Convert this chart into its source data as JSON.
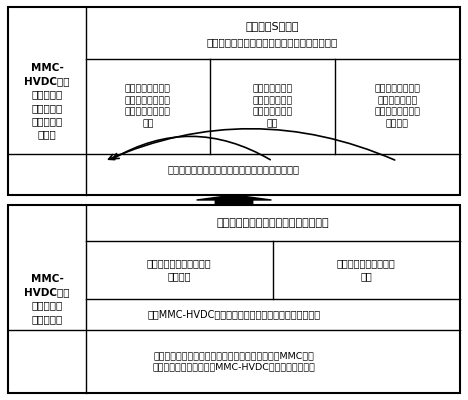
{
  "fig_width": 4.68,
  "fig_height": 4.0,
  "dpi": 100,
  "bg_color": "#ffffff",
  "top_section": {
    "left_label": "MMC-\nHVDC系统\n交流侧不同\n故障特征及\n能量流动机\n理分析",
    "top_row_line1": "基于广义S变换的",
    "top_row_line2": "特征谐波和非特征谐波暂态能量的故障特征分析",
    "cell1_text": "外部参数变化规律\n（直流电压电流、\n交流三相电压电流\n等）",
    "cell2_text": "内部参数变化规\n律（桥臂电流、\n子模块电压环流\n等）",
    "cell3_text": "故障系统及换流器\n暂态能量分布规\n律，构建系统能量\n流动回路",
    "bottom_text": "探寻能量流动机理与系统电气参数变化的耦合特性"
  },
  "bottom_section": {
    "left_label": "MMC-\nHVDC系统\n故障功率运\n行区间优化",
    "top_row_text": "基于系统能量流动规律的功率区间优化",
    "cell1_text": "考虑不同故障类型、不同\n跌落程度",
    "cell2_text": "综合考虑系统的多因素\n约束",
    "row3_text": "构建MMC-HVDC系统最大有功功率传输能力的解析表达式",
    "row4_text": "分析能量重新分布对系统各电气参数的影响，研究MMC功率\n运行区间优化方法，确定MMC-HVDC系统能量最优分布"
  }
}
